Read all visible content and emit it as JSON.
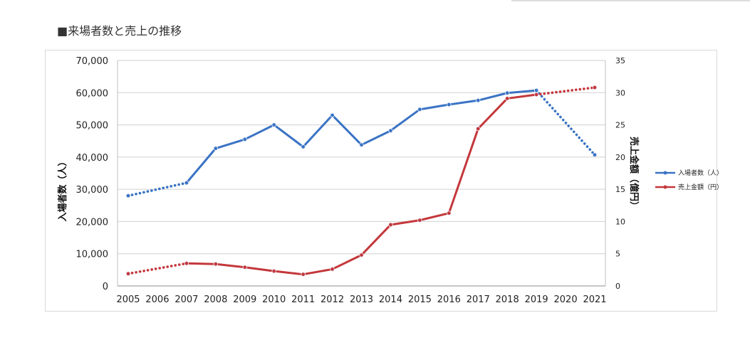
{
  "heading": "■来場者数と売上の推移",
  "chart_data": {
    "type": "line",
    "categories": [
      "2005",
      "2006",
      "2007",
      "2008",
      "2009",
      "2010",
      "2011",
      "2012",
      "2013",
      "2014",
      "2015",
      "2016",
      "2017",
      "2018",
      "2019",
      "2020",
      "2021"
    ],
    "ylabel": "入場者数（人）",
    "y2label": "売上金額（億円）",
    "ylim": [
      0,
      70000
    ],
    "y2lim": [
      0,
      35
    ],
    "y_ticks": [
      "0",
      "10,000",
      "20,000",
      "30,000",
      "40,000",
      "50,000",
      "60,000",
      "70,000"
    ],
    "y2_ticks": [
      "0",
      "5",
      "10",
      "15",
      "20",
      "25",
      "30",
      "35"
    ],
    "grid": true,
    "legend_position": "right",
    "series": [
      {
        "name": "入場者数（人）",
        "axis": "left",
        "color": "#3a73c4",
        "points": [
          {
            "x": 2005,
            "y": 28000
          },
          {
            "x": 2007,
            "y": 32000
          },
          {
            "x": 2008,
            "y": 42700
          },
          {
            "x": 2009,
            "y": 45500
          },
          {
            "x": 2010,
            "y": 50000
          },
          {
            "x": 2011,
            "y": 43200
          },
          {
            "x": 2012,
            "y": 53000
          },
          {
            "x": 2013,
            "y": 43800
          },
          {
            "x": 2014,
            "y": 48200
          },
          {
            "x": 2015,
            "y": 54800
          },
          {
            "x": 2016,
            "y": 56300
          },
          {
            "x": 2017,
            "y": 57600
          },
          {
            "x": 2018,
            "y": 59900
          },
          {
            "x": 2019,
            "y": 60700
          },
          {
            "x": 2021,
            "y": 40700
          }
        ],
        "dotted_segments": [
          [
            2005,
            2007
          ],
          [
            2019,
            2021
          ]
        ]
      },
      {
        "name": "売上金額（円）",
        "axis": "right",
        "color": "#c4373b",
        "points": [
          {
            "x": 2005,
            "y": 1.9
          },
          {
            "x": 2007,
            "y": 3.5
          },
          {
            "x": 2008,
            "y": 3.4
          },
          {
            "x": 2009,
            "y": 2.9
          },
          {
            "x": 2010,
            "y": 2.3
          },
          {
            "x": 2011,
            "y": 1.8
          },
          {
            "x": 2012,
            "y": 2.6
          },
          {
            "x": 2013,
            "y": 4.8
          },
          {
            "x": 2014,
            "y": 9.5
          },
          {
            "x": 2015,
            "y": 10.2
          },
          {
            "x": 2016,
            "y": 11.3
          },
          {
            "x": 2017,
            "y": 24.4
          },
          {
            "x": 2018,
            "y": 29.1
          },
          {
            "x": 2019,
            "y": 29.7
          },
          {
            "x": 2021,
            "y": 30.8
          }
        ],
        "dotted_segments": [
          [
            2005,
            2007
          ],
          [
            2019,
            2021
          ]
        ]
      }
    ]
  }
}
